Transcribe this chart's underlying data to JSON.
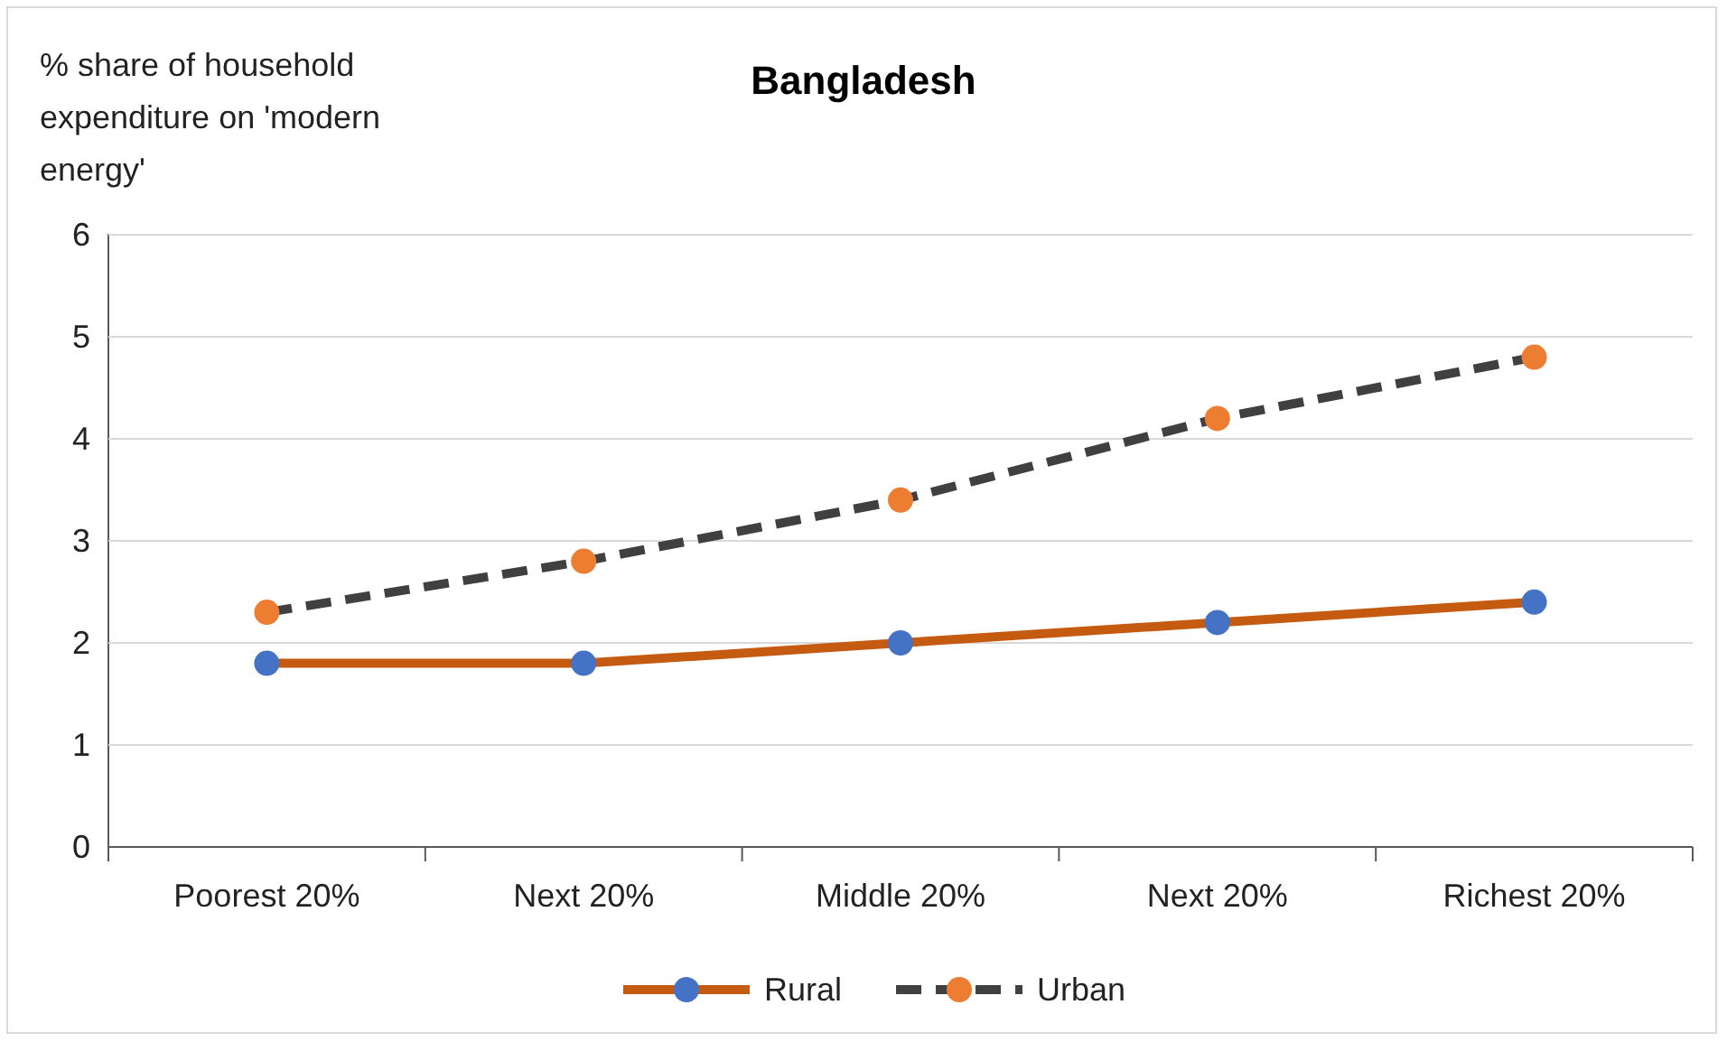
{
  "chart_data": {
    "type": "line",
    "title": "Bangladesh",
    "ylabel": "% share of household expenditure on 'modern energy'",
    "categories": [
      "Poorest 20%",
      "Next 20%",
      "Middle 20%",
      "Next 20%",
      "Richest 20%"
    ],
    "series": [
      {
        "name": "Rural",
        "color": "#c55a11",
        "colors": [
          "#4472c4",
          "#4472c4",
          "#4472c4",
          "#4472c4",
          "#4472c4"
        ],
        "line_style": "solid",
        "values": [
          1.8,
          1.8,
          2.0,
          2.2,
          2.4
        ]
      },
      {
        "name": "Urban",
        "color": "#404040",
        "colors": [
          "#ed7d31",
          "#ed7d31",
          "#ed7d31",
          "#ed7d31",
          "#ed7d31"
        ],
        "line_style": "dashed",
        "values": [
          2.3,
          2.8,
          3.4,
          4.2,
          4.8
        ]
      }
    ],
    "ylim": [
      0,
      6
    ],
    "yticks": [
      0,
      1,
      2,
      3,
      4,
      5,
      6
    ],
    "grid": "y",
    "legend": "bottom",
    "marker": "circle"
  }
}
